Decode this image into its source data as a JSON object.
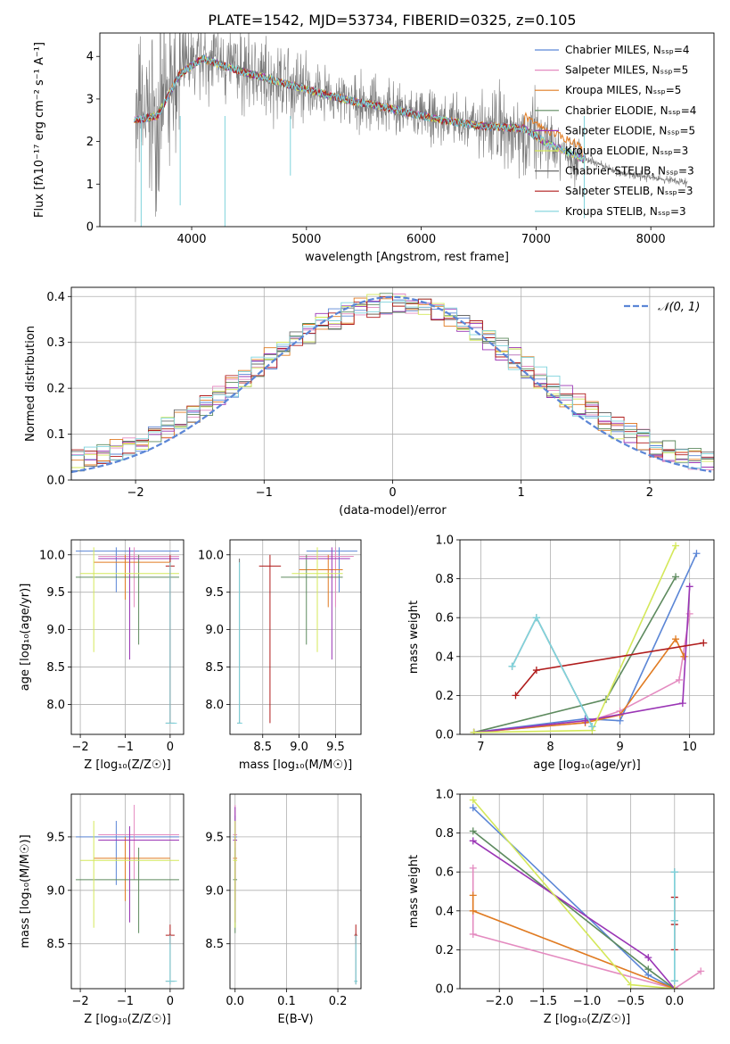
{
  "figure_title": "PLATE=1542, MJD=53734, FIBERID=0325, z=0.105",
  "colors": {
    "Chabrier MILES": "#5b86d6",
    "Salpeter MILES": "#e48bc0",
    "Kroupa MILES": "#e07b22",
    "Chabrier ELODIE": "#5d8a5e",
    "Salpeter ELODIE": "#9a35b5",
    "Kroupa ELODIE": "#d4e85a",
    "Chabrier STELIB": "#6b6b6b",
    "Salpeter STELIB": "#b01c1c",
    "Kroupa STELIB": "#7fd3dc",
    "normal": "#5b86d6",
    "grid": "#b0b0b0"
  },
  "chart_data": [
    {
      "id": "spectrum",
      "type": "line",
      "title": "",
      "xlabel": "wavelength [Angstrom, rest frame]",
      "ylabel": "Flux [fλ10⁻¹⁷ erg cm⁻² s⁻¹ A⁻¹]",
      "xlim": [
        3200,
        8550
      ],
      "ylim": [
        0,
        4.55
      ],
      "xticks": [
        4000,
        5000,
        6000,
        7000,
        8000
      ],
      "yticks": [
        0,
        1,
        2,
        3,
        4
      ],
      "grid": false,
      "legend_position": "right",
      "legend": [
        "Chabrier MILES, Nₛₛₚ=4",
        "Salpeter MILES, Nₛₛₚ=5",
        "Kroupa MILES, Nₛₛₚ=5",
        "Chabrier ELODIE, Nₛₛₚ=4",
        "Salpeter ELODIE, Nₛₛₚ=5",
        "Kroupa ELODIE, Nₛₛₚ=3",
        "Chabrier STELIB, Nₛₛₚ=3",
        "Salpeter STELIB, Nₛₛₚ=3",
        "Kroupa STELIB, Nₛₛₚ=3"
      ],
      "continuum": [
        [
          3500,
          2.5
        ],
        [
          3700,
          2.6
        ],
        [
          3900,
          3.6
        ],
        [
          4100,
          3.95
        ],
        [
          4300,
          3.75
        ],
        [
          4500,
          3.6
        ],
        [
          4700,
          3.45
        ],
        [
          4900,
          3.3
        ],
        [
          5100,
          3.15
        ],
        [
          5400,
          2.95
        ],
        [
          5700,
          2.8
        ],
        [
          6000,
          2.6
        ],
        [
          6300,
          2.45
        ],
        [
          6600,
          2.35
        ],
        [
          6900,
          2.3
        ],
        [
          7100,
          1.95
        ],
        [
          7400,
          1.6
        ],
        [
          7700,
          1.3
        ],
        [
          8000,
          1.15
        ],
        [
          8300,
          1.05
        ]
      ]
    },
    {
      "id": "residuals",
      "type": "line",
      "title": "",
      "xlabel": "(data-model)/error",
      "ylabel": "Normed distribution",
      "xlim": [
        -2.5,
        2.5
      ],
      "ylim": [
        0,
        0.42
      ],
      "xticks": [
        -2,
        -1,
        0,
        1,
        2
      ],
      "yticks": [
        0.0,
        0.1,
        0.2,
        0.3,
        0.4
      ],
      "grid": true,
      "legend_position": "top-right",
      "legend": [
        "𝒩(0, 1)"
      ],
      "series": [
        {
          "name": "normal pdf",
          "mean": 0,
          "sigma": 1
        }
      ]
    },
    {
      "id": "z-age",
      "type": "scatter",
      "xlabel": "Z [log₁₀(Z/Z☉)]",
      "ylabel": "age  [log₁₀(age/yr)]",
      "xlim": [
        -2.2,
        0.3
      ],
      "ylim": [
        7.6,
        10.2
      ],
      "xticks": [
        -2,
        -1,
        0
      ],
      "yticks": [
        8.0,
        8.5,
        9.0,
        9.5,
        10.0
      ],
      "grid": true
    },
    {
      "id": "mass-age",
      "type": "scatter",
      "xlabel": "mass [log₁₀(M/M☉)]",
      "ylabel": "",
      "xlim": [
        8.05,
        9.85
      ],
      "ylim": [
        7.6,
        10.2
      ],
      "xticks": [
        8.5,
        9.0,
        9.5
      ],
      "yticks": [
        8.0,
        8.5,
        9.0,
        9.5,
        10.0
      ],
      "grid": true
    },
    {
      "id": "age-weight",
      "type": "line",
      "xlabel": "age  [log₁₀(age/yr)]",
      "ylabel": "mass weight",
      "xlim": [
        6.7,
        10.35
      ],
      "ylim": [
        0,
        1.0
      ],
      "xticks": [
        7,
        8,
        9,
        10
      ],
      "yticks": [
        0.0,
        0.2,
        0.4,
        0.6,
        0.8,
        1.0
      ],
      "grid": true,
      "series": [
        {
          "name": "Chabrier MILES",
          "x": [
            6.9,
            8.5,
            9.0,
            10.1
          ],
          "y": [
            0.01,
            0.08,
            0.07,
            0.93
          ]
        },
        {
          "name": "Salpeter MILES",
          "x": [
            6.9,
            8.5,
            9.0,
            9.85,
            10.0
          ],
          "y": [
            0.01,
            0.06,
            0.12,
            0.28,
            0.62
          ]
        },
        {
          "name": "Kroupa MILES",
          "x": [
            6.9,
            8.5,
            9.0,
            9.8,
            9.92
          ],
          "y": [
            0.01,
            0.06,
            0.1,
            0.49,
            0.4
          ]
        },
        {
          "name": "Chabrier ELODIE",
          "x": [
            6.9,
            8.8,
            9.8
          ],
          "y": [
            0.01,
            0.18,
            0.81
          ]
        },
        {
          "name": "Salpeter ELODIE",
          "x": [
            6.9,
            8.5,
            9.9,
            10.0
          ],
          "y": [
            0.01,
            0.07,
            0.16,
            0.76
          ]
        },
        {
          "name": "Kroupa ELODIE",
          "x": [
            6.9,
            8.6,
            9.8
          ],
          "y": [
            0.01,
            0.02,
            0.97
          ]
        },
        {
          "name": "Chabrier STELIB",
          "x": [
            7.45,
            7.8,
            8.6
          ],
          "y": [
            0.35,
            0.6,
            0.04
          ]
        },
        {
          "name": "Salpeter STELIB",
          "x": [
            7.5,
            7.8,
            10.2
          ],
          "y": [
            0.2,
            0.33,
            0.47
          ]
        },
        {
          "name": "Kroupa STELIB",
          "x": [
            7.45,
            7.8,
            8.6
          ],
          "y": [
            0.35,
            0.6,
            0.04
          ]
        }
      ]
    },
    {
      "id": "z-mass",
      "type": "scatter",
      "xlabel": "Z [log₁₀(Z/Z☉)]",
      "ylabel": "mass [log₁₀(M/M☉)]",
      "xlim": [
        -2.2,
        0.3
      ],
      "ylim": [
        8.08,
        9.9
      ],
      "xticks": [
        -2,
        -1,
        0
      ],
      "yticks": [
        8.5,
        9.0,
        9.5
      ],
      "grid": true
    },
    {
      "id": "ebv-mass",
      "type": "scatter",
      "xlabel": "E(B-V)",
      "ylabel": "",
      "xlim": [
        -0.01,
        0.245
      ],
      "ylim": [
        8.08,
        9.9
      ],
      "xticks": [
        0.0,
        0.1,
        0.2
      ],
      "yticks": [
        8.5,
        9.0,
        9.5
      ],
      "grid": true
    },
    {
      "id": "z-weight",
      "type": "line",
      "xlabel": "Z [log₁₀(Z/Z☉)]",
      "ylabel": "mass weight",
      "xlim": [
        -2.45,
        0.45
      ],
      "ylim": [
        0,
        1.0
      ],
      "xticks": [
        -2.0,
        -1.5,
        -1.0,
        -0.5,
        0.0
      ],
      "yticks": [
        0.0,
        0.2,
        0.4,
        0.6,
        0.8,
        1.0
      ],
      "grid": true,
      "series": [
        {
          "name": "Chabrier MILES",
          "x": [
            -2.3,
            -0.3,
            0.0
          ],
          "y": [
            0.93,
            0.07,
            0.0
          ]
        },
        {
          "name": "Salpeter MILES",
          "x": [
            -2.3,
            -2.3,
            0.0,
            0.3
          ],
          "y": [
            0.62,
            0.28,
            0.0,
            0.09
          ]
        },
        {
          "name": "Kroupa MILES",
          "x": [
            -2.3,
            -2.3,
            0.0
          ],
          "y": [
            0.48,
            0.4,
            0.0
          ]
        },
        {
          "name": "Chabrier ELODIE",
          "x": [
            -2.3,
            -0.3,
            0.0
          ],
          "y": [
            0.81,
            0.1,
            0.0
          ]
        },
        {
          "name": "Salpeter ELODIE",
          "x": [
            -2.3,
            -0.3,
            0.0
          ],
          "y": [
            0.76,
            0.16,
            0.0
          ]
        },
        {
          "name": "Kroupa ELODIE",
          "x": [
            -2.3,
            -0.5,
            0.0
          ],
          "y": [
            0.97,
            0.02,
            0.0
          ]
        },
        {
          "name": "Chabrier STELIB",
          "x": [
            0.0,
            0.0,
            0.0
          ],
          "y": [
            0.6,
            0.35,
            0.04
          ]
        },
        {
          "name": "Salpeter STELIB",
          "x": [
            0.0,
            0.0,
            0.0
          ],
          "y": [
            0.47,
            0.33,
            0.2
          ]
        },
        {
          "name": "Kroupa STELIB",
          "x": [
            0.0,
            0.0,
            0.0
          ],
          "y": [
            0.6,
            0.35,
            0.04
          ]
        }
      ]
    }
  ]
}
